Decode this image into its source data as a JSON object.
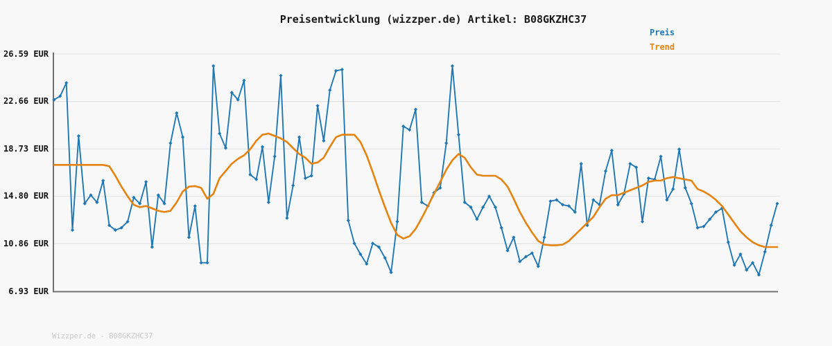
{
  "title": "Preisentwicklung (wizzper.de) Artikel: B08GKZHC37",
  "legend": {
    "price_label": "Preis",
    "trend_label": "Trend"
  },
  "watermark": "Wizzper.de - B08GKZHC37",
  "colors": {
    "price": "#1f77b4",
    "trend": "#e6820e",
    "grid": "#e3e3e3",
    "axis": "#6f6f6f",
    "background": "#f8f8f8",
    "title_text": "#1a1a1a",
    "tick_text": "#111111",
    "watermark_text": "#c8c8c8"
  },
  "chart_data": {
    "type": "line",
    "title": "Preisentwicklung (wizzper.de) Artikel: B08GKZHC37",
    "xlabel": "",
    "ylabel": "",
    "ylim": [
      6.93,
      26.59
    ],
    "grid": true,
    "legend_position": "top-right",
    "y_ticks": [
      {
        "label": "26.59 EUR",
        "value": 26.59
      },
      {
        "label": "22.66 EUR",
        "value": 22.66
      },
      {
        "label": "18.73 EUR",
        "value": 18.73
      },
      {
        "label": "14.80 EUR",
        "value": 14.8
      },
      {
        "label": "10.86 EUR",
        "value": 10.86
      },
      {
        "label": "6.93 EUR",
        "value": 6.93
      }
    ],
    "series": [
      {
        "name": "Preis",
        "style": "line-with-diamond-markers",
        "values": [
          22.8,
          23.1,
          24.2,
          12.0,
          19.8,
          14.2,
          14.9,
          14.3,
          16.1,
          12.4,
          12.0,
          12.2,
          12.7,
          14.7,
          14.2,
          16.0,
          10.6,
          14.9,
          14.2,
          19.2,
          21.7,
          19.7,
          11.4,
          14.0,
          9.3,
          9.3,
          25.6,
          20.0,
          18.8,
          23.4,
          22.8,
          24.4,
          16.6,
          16.2,
          18.9,
          14.3,
          18.1,
          24.8,
          13.0,
          15.7,
          19.7,
          16.3,
          16.5,
          22.3,
          19.4,
          23.6,
          25.2,
          25.3,
          12.8,
          10.9,
          10.0,
          9.2,
          10.9,
          10.6,
          9.7,
          8.5,
          12.7,
          20.6,
          20.3,
          22.0,
          14.3,
          14.0,
          15.1,
          15.5,
          19.2,
          25.6,
          19.9,
          14.3,
          13.9,
          12.9,
          13.9,
          14.8,
          13.9,
          12.2,
          10.3,
          11.4,
          9.4,
          9.8,
          10.1,
          9.0,
          11.4,
          14.4,
          14.5,
          14.1,
          14.0,
          13.5,
          17.5,
          12.4,
          14.5,
          14.1,
          16.9,
          18.6,
          14.1,
          15.0,
          17.5,
          17.2,
          12.7,
          16.3,
          16.2,
          18.1,
          14.5,
          15.4,
          18.7,
          15.5,
          14.2,
          12.2,
          12.3,
          12.9,
          13.5,
          13.8,
          11.0,
          9.1,
          10.0,
          8.7,
          9.3,
          8.3,
          10.2,
          12.4,
          14.2
        ]
      },
      {
        "name": "Trend",
        "style": "smooth-line",
        "values": [
          17.4,
          17.4,
          17.4,
          17.4,
          17.4,
          17.4,
          17.4,
          17.4,
          17.4,
          17.3,
          16.5,
          15.6,
          14.8,
          14.1,
          13.9,
          14.0,
          13.8,
          13.6,
          13.5,
          13.6,
          14.3,
          15.2,
          15.6,
          15.65,
          15.5,
          14.6,
          15.0,
          16.3,
          16.9,
          17.5,
          17.9,
          18.2,
          18.7,
          19.4,
          19.9,
          20.0,
          19.8,
          19.6,
          19.3,
          18.8,
          18.3,
          18.0,
          17.5,
          17.6,
          18.0,
          18.9,
          19.7,
          19.9,
          19.9,
          19.9,
          19.3,
          18.2,
          16.8,
          15.3,
          13.9,
          12.6,
          11.6,
          11.3,
          11.5,
          12.1,
          13.0,
          14.0,
          15.0,
          16.0,
          17.0,
          17.8,
          18.3,
          18.0,
          17.2,
          16.6,
          16.5,
          16.5,
          16.5,
          16.2,
          15.6,
          14.6,
          13.5,
          12.6,
          11.8,
          11.1,
          10.8,
          10.75,
          10.75,
          10.8,
          11.1,
          11.6,
          12.1,
          12.6,
          13.1,
          13.9,
          14.6,
          14.9,
          14.9,
          15.1,
          15.3,
          15.5,
          15.7,
          16.0,
          16.1,
          16.1,
          16.3,
          16.4,
          16.3,
          16.2,
          16.1,
          15.4,
          15.2,
          14.9,
          14.5,
          14.0,
          13.3,
          12.6,
          11.9,
          11.4,
          11.0,
          10.75,
          10.6,
          10.6,
          10.6
        ]
      }
    ]
  }
}
